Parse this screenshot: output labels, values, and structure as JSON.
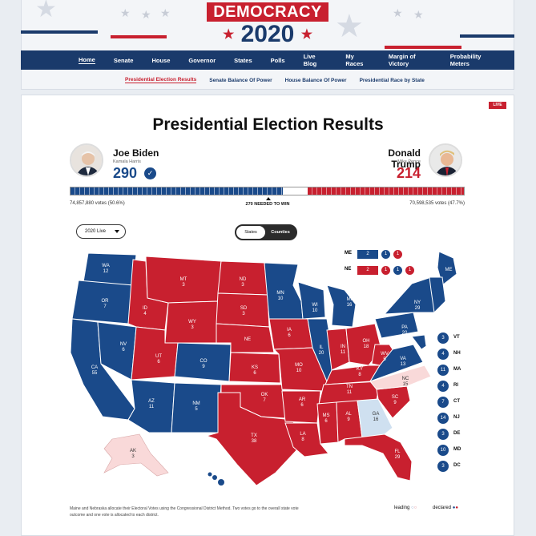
{
  "header": {
    "logo_text": "DEMOCRACY",
    "logo_year": "2020",
    "star": "★"
  },
  "nav": [
    "Home",
    "Senate",
    "House",
    "Governor",
    "States",
    "Polls",
    "Live Blog",
    "My Races",
    "Margin of Victory",
    "Probability Meters"
  ],
  "subnav": [
    "Presidential Election Results",
    "Senate Balance Of Power",
    "House Balance Of Power",
    "Presidential Race by State"
  ],
  "live_badge": "LIVE",
  "page_title": "Presidential Election Results",
  "dem": {
    "name": "Joe Biden",
    "vp": "Kamala Harris",
    "ev": "290",
    "votes": "74,857,880 votes (50.6%)",
    "check": "✓"
  },
  "rep": {
    "name": "Donald Trump",
    "vp": "Mike Pence",
    "ev": "214",
    "votes": "70,598,535 votes (47.7%)"
  },
  "ev_bar": {
    "dem_ev": 290,
    "rep_ev": 214,
    "total_ev": 538
  },
  "needed_to_win": "270 NEEDED TO WIN",
  "year_select": "2020 Live",
  "view_toggle": {
    "states": "States",
    "counties": "Counties"
  },
  "colors": {
    "dem": "#1a4a8a",
    "rep": "#c8202f",
    "dem_lean": "#cfe0f0",
    "rep_lean": "#f9d9d9"
  },
  "map_states": [
    {
      "abbr": "WA",
      "ev": "12",
      "party": "D"
    },
    {
      "abbr": "OR",
      "ev": "7",
      "party": "D"
    },
    {
      "abbr": "CA",
      "ev": "55",
      "party": "D"
    },
    {
      "abbr": "NV",
      "ev": "6",
      "party": "D"
    },
    {
      "abbr": "ID",
      "ev": "4",
      "party": "R"
    },
    {
      "abbr": "MT",
      "ev": "3",
      "party": "R"
    },
    {
      "abbr": "WY",
      "ev": "3",
      "party": "R"
    },
    {
      "abbr": "UT",
      "ev": "6",
      "party": "R"
    },
    {
      "abbr": "AZ",
      "ev": "11",
      "party": "D"
    },
    {
      "abbr": "CO",
      "ev": "9",
      "party": "D"
    },
    {
      "abbr": "NM",
      "ev": "5",
      "party": "D"
    },
    {
      "abbr": "ND",
      "ev": "3",
      "party": "R"
    },
    {
      "abbr": "SD",
      "ev": "3",
      "party": "R"
    },
    {
      "abbr": "NE",
      "ev": "",
      "party": "R"
    },
    {
      "abbr": "KS",
      "ev": "6",
      "party": "R"
    },
    {
      "abbr": "OK",
      "ev": "7",
      "party": "R"
    },
    {
      "abbr": "TX",
      "ev": "38",
      "party": "R"
    },
    {
      "abbr": "MN",
      "ev": "10",
      "party": "D"
    },
    {
      "abbr": "IA",
      "ev": "6",
      "party": "R"
    },
    {
      "abbr": "MO",
      "ev": "10",
      "party": "R"
    },
    {
      "abbr": "AR",
      "ev": "6",
      "party": "R"
    },
    {
      "abbr": "LA",
      "ev": "8",
      "party": "R"
    },
    {
      "abbr": "WI",
      "ev": "10",
      "party": "D"
    },
    {
      "abbr": "IL",
      "ev": "20",
      "party": "D"
    },
    {
      "abbr": "MI",
      "ev": "16",
      "party": "D"
    },
    {
      "abbr": "IN",
      "ev": "11",
      "party": "R"
    },
    {
      "abbr": "OH",
      "ev": "18",
      "party": "R"
    },
    {
      "abbr": "KY",
      "ev": "8",
      "party": "R"
    },
    {
      "abbr": "TN",
      "ev": "11",
      "party": "R"
    },
    {
      "abbr": "MS",
      "ev": "6",
      "party": "R"
    },
    {
      "abbr": "AL",
      "ev": "9",
      "party": "R"
    },
    {
      "abbr": "GA",
      "ev": "16",
      "party": "D-lean"
    },
    {
      "abbr": "FL",
      "ev": "29",
      "party": "R"
    },
    {
      "abbr": "SC",
      "ev": "9",
      "party": "R"
    },
    {
      "abbr": "NC",
      "ev": "15",
      "party": "R-lean"
    },
    {
      "abbr": "VA",
      "ev": "13",
      "party": "D"
    },
    {
      "abbr": "WV",
      "ev": "5",
      "party": "R"
    },
    {
      "abbr": "PA",
      "ev": "20",
      "party": "D"
    },
    {
      "abbr": "NY",
      "ev": "29",
      "party": "D"
    },
    {
      "abbr": "ME",
      "ev": "",
      "party": "D"
    },
    {
      "abbr": "AK",
      "ev": "3",
      "party": "R-lean"
    },
    {
      "abbr": "HI",
      "ev": "4",
      "party": "D"
    }
  ],
  "small_states": [
    {
      "ev": "3",
      "abbr": "VT"
    },
    {
      "ev": "4",
      "abbr": "NH"
    },
    {
      "ev": "11",
      "abbr": "MA"
    },
    {
      "ev": "4",
      "abbr": "RI"
    },
    {
      "ev": "7",
      "abbr": "CT"
    },
    {
      "ev": "14",
      "abbr": "NJ"
    },
    {
      "ev": "3",
      "abbr": "DE"
    },
    {
      "ev": "10",
      "abbr": "MD"
    },
    {
      "ev": "3",
      "abbr": "DC"
    }
  ],
  "districts": {
    "me": {
      "label": "ME",
      "statewide": "2",
      "d1": "1",
      "d2": "1",
      "d3": "1"
    },
    "ne": {
      "label": "NE",
      "statewide": "2",
      "d1": "1",
      "d2": "1",
      "d3": "1"
    }
  },
  "footnote": "Maine and Nebraska allocate their Electoral Votes using the Congressional District Method. Two votes go to the overall state vote outcome and one vote is allocated to each district.",
  "legend": {
    "leading": "leading",
    "declared": "declared"
  }
}
